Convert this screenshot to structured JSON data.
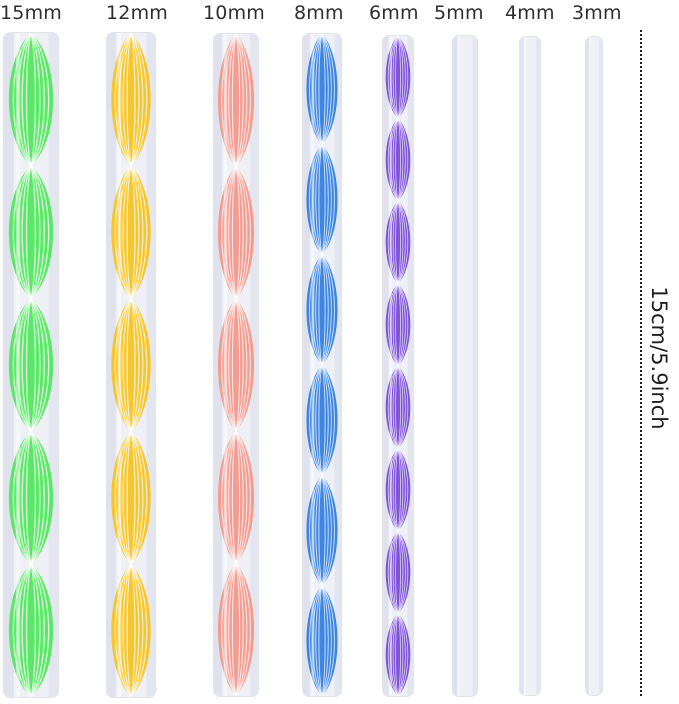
{
  "rods": [
    {
      "size_label": "15mm",
      "color": "#4ee65a",
      "twists": 5
    },
    {
      "size_label": "12mm",
      "color": "#f6c21c",
      "twists": 5
    },
    {
      "size_label": "10mm",
      "color": "#f39588",
      "twists": 5
    },
    {
      "size_label": "8mm",
      "color": "#2f7de0",
      "twists": 6
    },
    {
      "size_label": "6mm",
      "color": "#7446d6",
      "twists": 8
    },
    {
      "size_label": "5mm",
      "color": "#e8e9f2",
      "twists": 0
    },
    {
      "size_label": "4mm",
      "color": "#e8e9f2",
      "twists": 0
    },
    {
      "size_label": "3mm",
      "color": "#e8e9f2",
      "twists": 0
    }
  ],
  "length_label": "15cm/5.9inch"
}
